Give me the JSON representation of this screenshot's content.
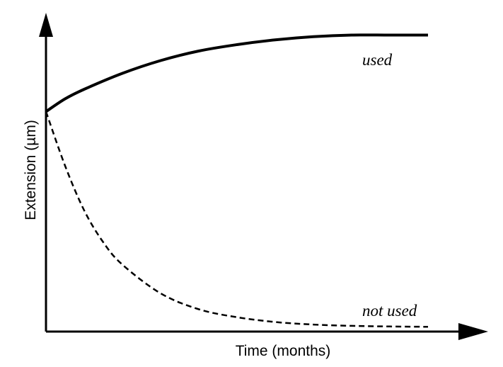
{
  "chart_data": {
    "type": "line",
    "title": "",
    "xlabel": "Time (months)",
    "ylabel": "Extension (µm)",
    "xlim": [
      0,
      1
    ],
    "ylim": [
      0,
      1
    ],
    "grid": false,
    "legend": "none",
    "series": [
      {
        "name": "used",
        "style": "solid",
        "color": "#000000",
        "x": [
          0,
          0.05,
          0.1,
          0.2,
          0.3,
          0.4,
          0.5,
          0.6,
          0.7,
          0.8,
          0.9,
          1.0
        ],
        "y": [
          0.69,
          0.73,
          0.76,
          0.81,
          0.85,
          0.88,
          0.9,
          0.915,
          0.925,
          0.93,
          0.93,
          0.93
        ]
      },
      {
        "name": "not used",
        "style": "dashed",
        "color": "#000000",
        "x": [
          0,
          0.05,
          0.1,
          0.15,
          0.2,
          0.3,
          0.4,
          0.5,
          0.6,
          0.7,
          0.8,
          0.9,
          1.0
        ],
        "y": [
          0.69,
          0.52,
          0.38,
          0.28,
          0.21,
          0.12,
          0.07,
          0.045,
          0.03,
          0.022,
          0.018,
          0.016,
          0.015
        ]
      }
    ]
  }
}
